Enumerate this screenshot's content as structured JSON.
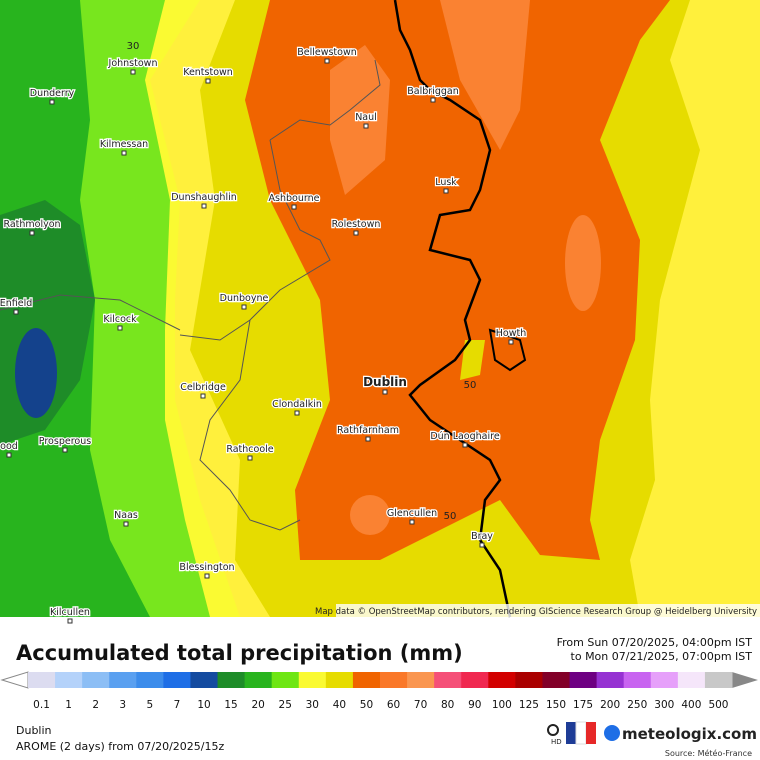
{
  "map": {
    "places": [
      "Johnstown",
      "Kentstown",
      "Bellewstown",
      "Dunderry",
      "Balbriggan",
      "Naul",
      "Kilmessan",
      "Lusk",
      "Dunshaughlin",
      "Ashbourne",
      "Rathmolyon",
      "Rolestown",
      "Dunboyne",
      "Enfield",
      "Kilcock",
      "Howth",
      "Dublin",
      "Celbridge",
      "Clondalkin",
      "Rathfarnham",
      "Prosperous",
      "ood",
      "Dún Laoghaire",
      "Rathcoole",
      "Naas",
      "Glencullen",
      "Bray",
      "Blessington",
      "Kilcullen"
    ],
    "contour_labels": [
      "30",
      "50",
      "50"
    ],
    "attribution": "Map data © OpenStreetMap contributors, rendering GIScience Research Group @ Heidelberg University"
  },
  "title": "Accumulated total precipitation (mm)",
  "period": {
    "from": "From Sun 07/20/2025, 04:00pm IST",
    "to": "to Mon 07/21/2025, 07:00pm IST"
  },
  "legend": {
    "items": [
      {
        "label": "0.1",
        "color": "#dcdcf0"
      },
      {
        "label": "1",
        "color": "#b4d2fa"
      },
      {
        "label": "2",
        "color": "#8cbef5"
      },
      {
        "label": "3",
        "color": "#5aa0f0"
      },
      {
        "label": "5",
        "color": "#3c8ceb"
      },
      {
        "label": "7",
        "color": "#1e6ee6"
      },
      {
        "label": "10",
        "color": "#144ba0"
      },
      {
        "label": "15",
        "color": "#1e8c28"
      },
      {
        "label": "20",
        "color": "#28b41e"
      },
      {
        "label": "25",
        "color": "#6ee614"
      },
      {
        "label": "30",
        "color": "#fafa32"
      },
      {
        "label": "40",
        "color": "#e6dc00"
      },
      {
        "label": "50",
        "color": "#f06400"
      },
      {
        "label": "60",
        "color": "#fa7828"
      },
      {
        "label": "70",
        "color": "#fa9650"
      },
      {
        "label": "80",
        "color": "#f55078"
      },
      {
        "label": "90",
        "color": "#f02850"
      },
      {
        "label": "100",
        "color": "#d20000"
      },
      {
        "label": "125",
        "color": "#aa0000"
      },
      {
        "label": "150",
        "color": "#820028"
      },
      {
        "label": "175",
        "color": "#6e0082"
      },
      {
        "label": "200",
        "color": "#9632d2"
      },
      {
        "label": "250",
        "color": "#c864f0"
      },
      {
        "label": "300",
        "color": "#e6a0fa"
      },
      {
        "label": "400",
        "color": "#f5e6fa"
      },
      {
        "label": "500",
        "color": "#c8c8c8"
      }
    ]
  },
  "footer": {
    "location": "Dublin",
    "model": "AROME (2 days) from 07/20/2025/15z",
    "hd_badge": "HD",
    "brand": "meteologix.com",
    "source": "Source: Météo-France"
  }
}
